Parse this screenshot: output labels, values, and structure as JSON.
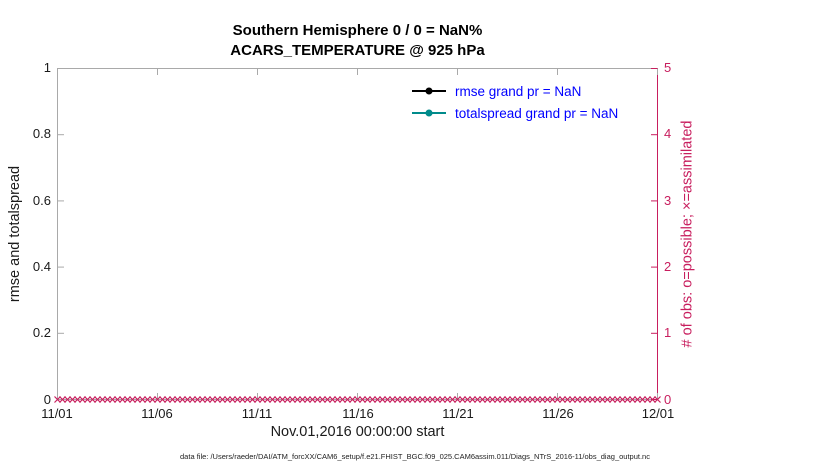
{
  "colors": {
    "axis": "#a9a9a9",
    "crimson": "#c81e5e",
    "legend_text": "#0000ff",
    "teal": "#008b8b",
    "black": "#000000"
  },
  "caption": "data file: /Users/raeder/DAI/ATM_forcXX/CAM6_setup/f.e21.FHIST_BGC.f09_025.CAM6assim.011/Diags_NTrS_2016-11/obs_diag_output.nc",
  "chart_data": {
    "type": "line",
    "title": "Southern Hemisphere 0 / 0 = NaN%",
    "subtitle": "ACARS_TEMPERATURE @ 925 hPa",
    "xlabel": "Nov.01,2016 00:00:00 start",
    "grid": false,
    "legend_position": "top-center-right",
    "left_axis": {
      "label": "rmse and totalspread",
      "tick_labels": [
        "0",
        "0.2",
        "0.4",
        "0.6",
        "0.8",
        "1"
      ],
      "ylim": [
        0,
        1
      ]
    },
    "right_axis": {
      "label": "# of obs: o=possible; ×=assimilated",
      "tick_labels": [
        "0",
        "1",
        "2",
        "3",
        "4",
        "5"
      ],
      "ylim": [
        0,
        5
      ]
    },
    "x_axis": {
      "tick_labels": [
        "11/01",
        "11/06",
        "11/11",
        "11/16",
        "11/21",
        "11/26",
        "12/01"
      ],
      "range_start": "11/01",
      "range_end": "12/01"
    },
    "legend": [
      {
        "series": "rmse",
        "label": "rmse grand pr = NaN",
        "color": "#000000"
      },
      {
        "series": "totalspread",
        "label": "totalspread grand pr = NaN",
        "color": "#008b8b"
      }
    ],
    "series": [
      {
        "name": "rmse",
        "values": null
      },
      {
        "name": "totalspread",
        "values": null
      }
    ],
    "assimilated_obs_markers": {
      "symbol": "x",
      "axis": "right",
      "value": 0,
      "from": "11/01",
      "to": "12/01",
      "count": 121
    }
  }
}
